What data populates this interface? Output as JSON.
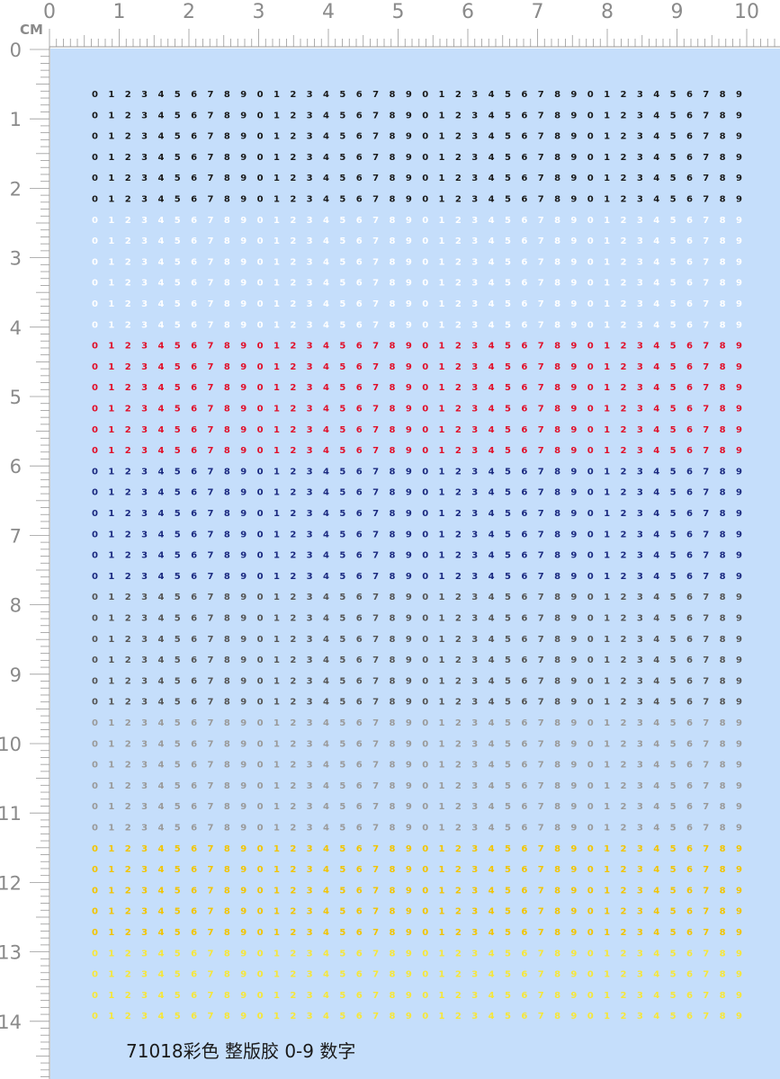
{
  "ruler": {
    "unit": "CM",
    "top_labels": [
      0,
      1,
      2,
      3,
      4,
      5,
      6,
      7,
      8,
      9,
      10
    ],
    "left_labels": [
      0,
      1,
      2,
      3,
      4,
      5,
      6,
      7,
      8,
      9,
      10,
      11,
      12,
      13,
      14
    ]
  },
  "sheet": {
    "groups": [
      {
        "color": "#1a1a1a",
        "rows": [
          "0123456789012345678901234567890123456789",
          "0123456789012345678901234567890123456789",
          "0123456789012345678901234567890123456789",
          "0123456789012345678901234567890123456789",
          "0123456789012345678901234567890123456789",
          "0123456789012345678901234567890123456789"
        ]
      },
      {
        "color": "#ffffff",
        "rows": [
          "0123456789012345678901234567890123456789",
          "0123456789012345678901234567890123456789",
          "0123456789012345678901234567890123456789",
          "0123456789012345678901234567890123456789",
          "0123456789012345678901234567890123456789",
          "0123456789012345678901234567890123456789"
        ]
      },
      {
        "color": "#e0102a",
        "rows": [
          "0123456789012345678901234567890123456789",
          "0123456789012345678901234567890123456789",
          "0123456789012345678901234567890123456789",
          "0123456789012345678901234567890123456789",
          "0123456789012345678901234567890123456789",
          "0123456789012345678901234567890123456789"
        ]
      },
      {
        "color": "#1b2a80",
        "rows": [
          "0123456789012345678901234567890123456789",
          "0123456789012345678901234567890123456789",
          "0123456789012345678901234567890123456789",
          "0123456789012345678901234567890123456789",
          "0123456789012345678901234567890123456789",
          "0123456789012345678901234567890123456789"
        ]
      },
      {
        "color": "#555555",
        "rows": [
          "0123456789012345678901234567890123456789",
          "0123456789012345678901234567890123456789",
          "0123456789012345678901234567890123456789",
          "0123456789012345678901234567890123456789",
          "0123456789012345678901234567890123456789",
          "0123456789012345678901234567890123456789"
        ]
      },
      {
        "color": "#9a9a9a",
        "rows": [
          "0123456789012345678901234567890123456789",
          "0123456789012345678901234567890123456789",
          "0123456789012345678901234567890123456789",
          "0123456789012345678901234567890123456789",
          "0123456789012345678901234567890123456789",
          "0123456789012345678901234567890123456789"
        ]
      },
      {
        "color": "#f2c400",
        "rows": [
          "0123456789012345678901234567890123456789",
          "0123456789012345678901234567890123456789",
          "0123456789012345678901234567890123456789",
          "0123456789012345678901234567890123456789",
          "0123456789012345678901234567890123456789"
        ]
      },
      {
        "color": "#f6e63a",
        "rows": [
          "0123456789012345678901234567890123456789",
          "0123456789012345678901234567890123456789",
          "0123456789012345678901234567890123456789",
          "0123456789012345678901234567890123456789"
        ]
      }
    ],
    "caption": "71018彩色 整版胶 0-9 数字"
  }
}
